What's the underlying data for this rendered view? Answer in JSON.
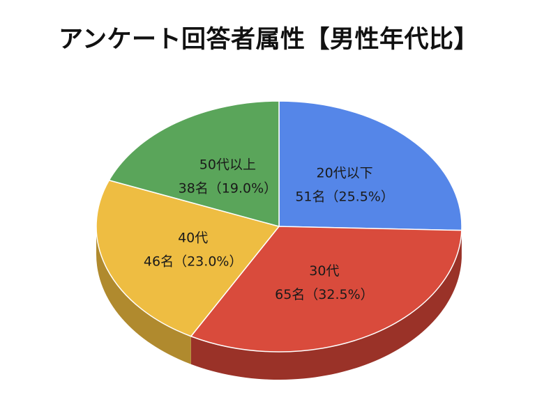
{
  "chart_data": {
    "type": "pie",
    "title": "アンケート回答者属性【男性年代比】",
    "slices": [
      {
        "name": "20代以下",
        "count_label": "51名（25.5%）",
        "value": 51,
        "percent": 25.5,
        "color": "#5586e8",
        "side_color": "#3a5ea6"
      },
      {
        "name": "30代",
        "count_label": "65名（32.5%）",
        "value": 65,
        "percent": 32.5,
        "color": "#d94b3c",
        "side_color": "#9a3228"
      },
      {
        "name": "40代",
        "count_label": "46名（23.0%）",
        "value": 46,
        "percent": 23.0,
        "color": "#eebd42",
        "side_color": "#b08a2e"
      },
      {
        "name": "50代以上",
        "count_label": "38名（19.0%）",
        "value": 38,
        "percent": 19.0,
        "color": "#5aa55a",
        "side_color": "#3d7a3d"
      }
    ],
    "start_angle": "12 o'clock",
    "direction": "clockwise",
    "style": "3d-tilted",
    "legend": "none"
  }
}
